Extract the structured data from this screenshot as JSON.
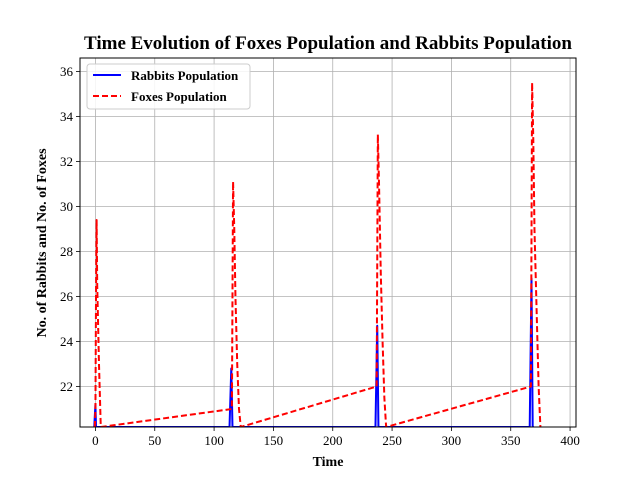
{
  "chart_data": {
    "type": "line",
    "title": "Time Evolution of Foxes Population and Rabbits Population",
    "xlabel": "Time",
    "ylabel": "No. of Rabbits and No. of Foxes",
    "xlim": [
      -13,
      405
    ],
    "ylim": [
      20.2,
      36.6
    ],
    "xticks": [
      0,
      50,
      100,
      150,
      200,
      250,
      300,
      350,
      400
    ],
    "yticks": [
      22,
      24,
      26,
      28,
      30,
      32,
      34,
      36
    ],
    "grid": true,
    "legend_position": "upper-left",
    "series": [
      {
        "name": "Rabbits Population",
        "color": "#0000ff",
        "style": "solid",
        "x": [
          -1,
          0,
          0.5,
          1,
          1.5,
          113,
          114.5,
          115.5,
          116,
          116.5,
          236,
          237.5,
          238.5,
          239,
          239.5,
          366,
          367.5,
          368.5,
          369,
          369.5
        ],
        "y": [
          20.2,
          21.2,
          20.2,
          20.2,
          20.2,
          20.2,
          22.8,
          20.2,
          20.2,
          20.2,
          20.2,
          24.7,
          20.2,
          20.2,
          20.2,
          20.2,
          26.8,
          20.2,
          20.2,
          20.2
        ]
      },
      {
        "name": "Foxes Population",
        "color": "#ff0000",
        "style": "dashed",
        "x": [
          -0.5,
          0,
          0.5,
          1,
          1.5,
          3,
          4.5,
          115,
          116,
          117,
          118,
          119.5,
          121,
          122.5,
          237,
          238,
          239,
          240.5,
          242,
          243.5,
          245,
          367,
          368,
          369,
          370,
          372,
          373.5,
          375
        ],
        "y": [
          20.2,
          21.0,
          26.0,
          29.4,
          26.5,
          23.0,
          20.2,
          21.0,
          31.1,
          29.0,
          26.0,
          23.0,
          21.0,
          20.2,
          22.0,
          33.2,
          31.0,
          27.0,
          24.0,
          21.5,
          20.2,
          22.0,
          35.5,
          33.0,
          29.0,
          25.0,
          22.0,
          20.2
        ]
      }
    ]
  }
}
